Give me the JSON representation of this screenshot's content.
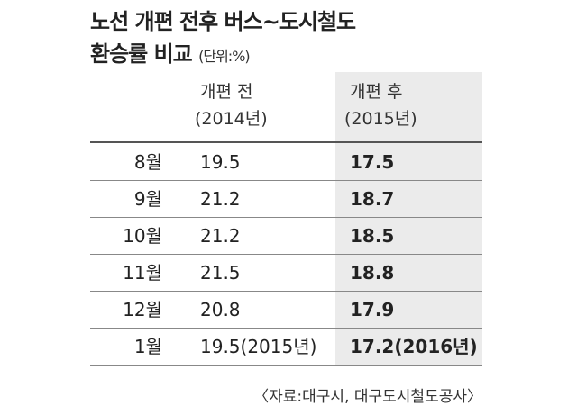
{
  "header": {
    "title_line1": "노선 개편 전후 버스~도시철도",
    "title_line2": "환승률 비교",
    "unit": "(단위:%)"
  },
  "table": {
    "columns": [
      {
        "label": "개편 전",
        "year": "(2014년)"
      },
      {
        "label": "개편 후",
        "year": "(2015년)"
      }
    ],
    "rows": [
      [
        "8월",
        "19.5",
        "17.5"
      ],
      [
        "9월",
        "21.2",
        "18.7"
      ],
      [
        "10월",
        "21.2",
        "18.5"
      ],
      [
        "11월",
        "21.5",
        "18.8"
      ],
      [
        "12월",
        "20.8",
        "17.9"
      ],
      [
        "1월",
        "19.5(2015년)",
        "17.2(2016년)"
      ]
    ]
  },
  "source": "〈자료:대구시, 대구도시철도공사〉"
}
